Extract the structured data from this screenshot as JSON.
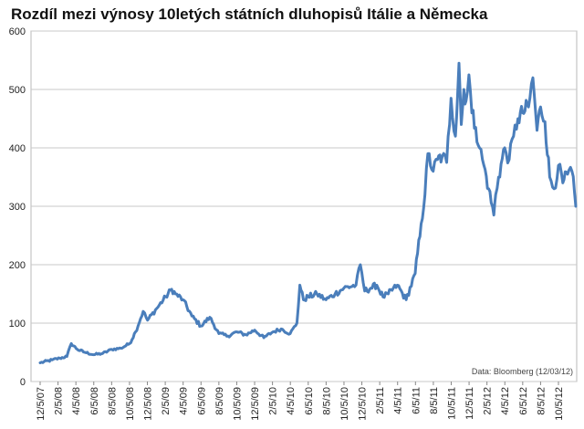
{
  "chart_data": {
    "type": "line",
    "title": "Rozdíl mezi výnosy 10letých státních dluhopisů Itálie a Německa",
    "xlabel": "",
    "ylabel": "",
    "ylim": [
      0,
      600
    ],
    "yticks": [
      0,
      100,
      200,
      300,
      400,
      500,
      600
    ],
    "grid": "horizontal",
    "x_tick_labels": [
      "12/5/07",
      "2/5/08",
      "4/5/08",
      "6/5/08",
      "8/5/08",
      "10/5/08",
      "12/5/08",
      "2/5/09",
      "4/5/09",
      "6/5/09",
      "8/5/09",
      "10/5/09",
      "12/5/09",
      "2/5/10",
      "4/5/10",
      "6/5/10",
      "8/5/10",
      "10/5/10",
      "12/5/10",
      "2/5/11",
      "4/5/11",
      "6/5/11",
      "8/5/11",
      "10/5/11",
      "12/5/11",
      "2/5/12",
      "4/5/12",
      "6/5/12",
      "8/5/12",
      "10/5/12"
    ],
    "source_note": "Data: Bloomberg (12/03/12)",
    "series": [
      {
        "color": "#4a7ebb",
        "x": [
          "2007-12-05",
          "2008-01-15",
          "2008-02-10",
          "2008-03-05",
          "2008-03-20",
          "2008-04-10",
          "2008-05-05",
          "2008-06-05",
          "2008-07-05",
          "2008-08-05",
          "2008-09-05",
          "2008-10-05",
          "2008-10-25",
          "2008-11-20",
          "2008-12-05",
          "2009-01-05",
          "2009-02-05",
          "2009-02-25",
          "2009-03-10",
          "2009-04-05",
          "2009-05-05",
          "2009-06-05",
          "2009-07-05",
          "2009-08-05",
          "2009-09-05",
          "2009-10-05",
          "2009-11-05",
          "2009-12-05",
          "2010-01-05",
          "2010-02-05",
          "2010-03-05",
          "2010-04-05",
          "2010-04-28",
          "2010-05-08",
          "2010-05-20",
          "2010-06-05",
          "2010-07-05",
          "2010-08-05",
          "2010-09-05",
          "2010-10-05",
          "2010-11-15",
          "2010-11-30",
          "2010-12-15",
          "2011-01-05",
          "2011-01-25",
          "2011-02-15",
          "2011-03-05",
          "2011-04-05",
          "2011-05-05",
          "2011-06-05",
          "2011-06-25",
          "2011-07-08",
          "2011-07-18",
          "2011-08-05",
          "2011-08-20",
          "2011-09-05",
          "2011-09-20",
          "2011-10-05",
          "2011-10-20",
          "2011-11-01",
          "2011-11-09",
          "2011-11-18",
          "2011-11-25",
          "2011-12-05",
          "2011-12-15",
          "2011-12-28",
          "2012-01-10",
          "2012-01-25",
          "2012-02-10",
          "2012-02-28",
          "2012-03-05",
          "2012-03-15",
          "2012-04-05",
          "2012-04-20",
          "2012-05-05",
          "2012-05-20",
          "2012-06-05",
          "2012-06-25",
          "2012-07-10",
          "2012-07-24",
          "2012-08-05",
          "2012-08-20",
          "2012-09-05",
          "2012-09-20",
          "2012-10-05",
          "2012-10-20",
          "2012-11-05",
          "2012-11-20",
          "2012-12-03"
        ],
        "y": [
          32,
          37,
          40,
          43,
          65,
          55,
          50,
          46,
          48,
          55,
          57,
          65,
          85,
          120,
          105,
          125,
          145,
          158,
          150,
          140,
          112,
          95,
          110,
          82,
          78,
          85,
          80,
          88,
          75,
          85,
          90,
          82,
          100,
          165,
          140,
          145,
          150,
          140,
          150,
          160,
          165,
          200,
          155,
          160,
          165,
          145,
          150,
          165,
          140,
          185,
          270,
          320,
          390,
          360,
          380,
          385,
          375,
          485,
          420,
          545,
          440,
          500,
          480,
          525,
          460,
          435,
          400,
          370,
          330,
          285,
          320,
          350,
          400,
          380,
          420,
          450,
          460,
          470,
          520,
          430,
          470,
          445,
          350,
          330,
          370,
          340,
          355,
          360,
          300
        ]
      }
    ]
  }
}
